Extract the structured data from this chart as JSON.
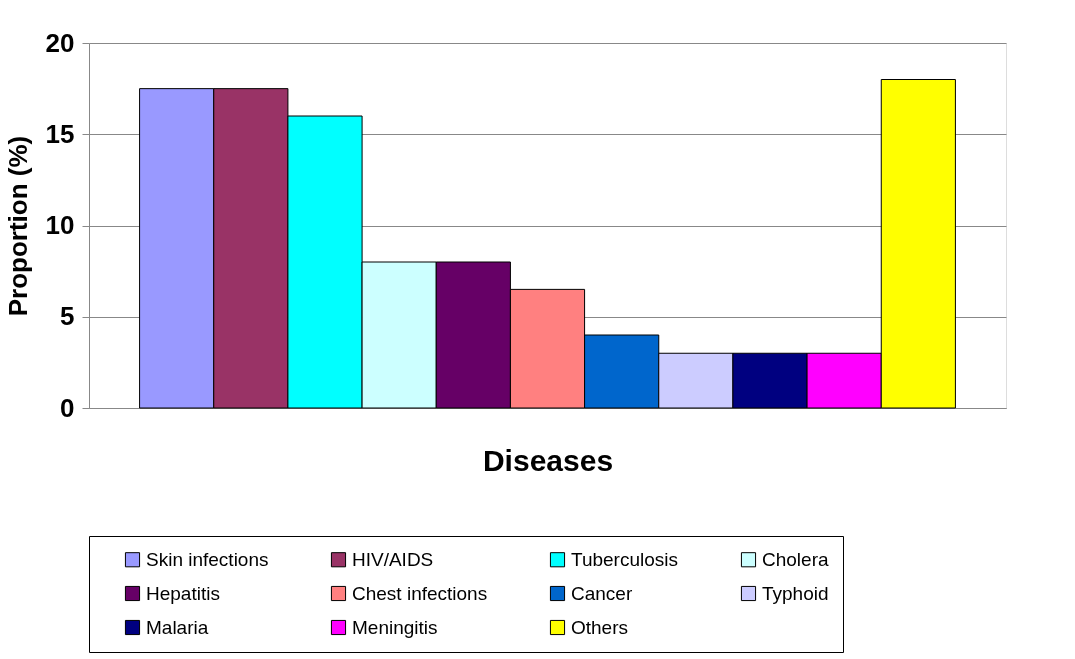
{
  "chart_data": {
    "type": "bar",
    "xlabel": "Diseases",
    "ylabel": "Proportion (%)",
    "categories": [
      null
    ],
    "series": [
      {
        "name": "Skin infections",
        "color": "#9999ff",
        "values": [
          17.5
        ]
      },
      {
        "name": "HIV/AIDS",
        "color": "#993366",
        "values": [
          17.5
        ]
      },
      {
        "name": "Tuberculosis",
        "color": "#00ffff",
        "values": [
          16
        ]
      },
      {
        "name": "Cholera",
        "color": "#ccffff",
        "values": [
          8
        ]
      },
      {
        "name": "Hepatitis",
        "color": "#660066",
        "values": [
          8
        ]
      },
      {
        "name": "Chest infections",
        "color": "#ff8080",
        "values": [
          6.5
        ]
      },
      {
        "name": "Cancer",
        "color": "#0066cc",
        "values": [
          4
        ]
      },
      {
        "name": "Typhoid",
        "color": "#ccccff",
        "values": [
          3
        ]
      },
      {
        "name": "Malaria",
        "color": "#000080",
        "values": [
          3
        ]
      },
      {
        "name": "Meningitis",
        "color": "#ff00ff",
        "values": [
          3
        ]
      },
      {
        "name": "Others",
        "color": "#ffff00",
        "values": [
          18
        ]
      }
    ],
    "ylim": [
      0,
      20
    ],
    "yticks": [
      0,
      5,
      10,
      15,
      20
    ],
    "grid": "y",
    "legend": "bottom"
  }
}
